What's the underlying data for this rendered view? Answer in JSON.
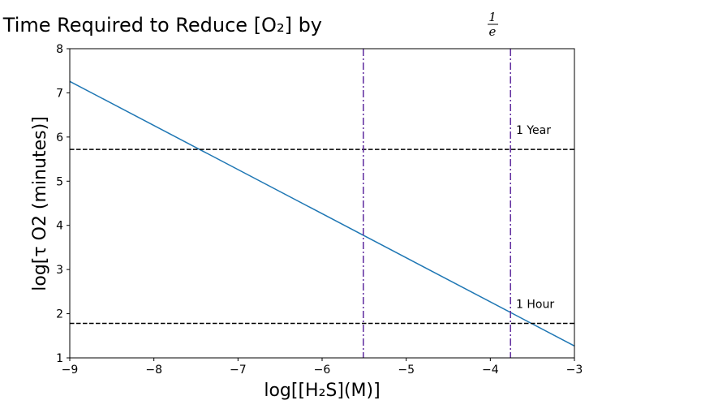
{
  "chart_data": {
    "type": "line",
    "title": "Time Required to Reduce [O₂] by",
    "title_fraction": {
      "numerator": "1",
      "denominator": "e"
    },
    "xlabel": "log[[H₂S](M)]",
    "ylabel": "log[τ O2 (minutes)]",
    "xlim": [
      -9,
      -3
    ],
    "ylim": [
      1,
      8
    ],
    "xticks": [
      -9,
      -8,
      -7,
      -6,
      -5,
      -4,
      -3
    ],
    "xtick_labels": [
      "−9",
      "−8",
      "−7",
      "−6",
      "−5",
      "−4",
      "−3"
    ],
    "yticks": [
      1,
      2,
      3,
      4,
      5,
      6,
      7,
      8
    ],
    "ytick_labels": [
      "1",
      "2",
      "3",
      "4",
      "5",
      "6",
      "7",
      "8"
    ],
    "grid": false,
    "series": [
      {
        "x": [
          -9,
          -3
        ],
        "y": [
          7.26,
          1.27
        ],
        "color": "#1f77b4"
      }
    ],
    "hlines": [
      {
        "y": 5.72,
        "label": "1 Year",
        "style": "dashed",
        "color": "#000000"
      },
      {
        "y": 1.78,
        "label": "1 Hour",
        "style": "dashed",
        "color": "#000000"
      }
    ],
    "vlines": [
      {
        "x": -5.51,
        "style": "dashdot",
        "color": "#5e2a9e"
      },
      {
        "x": -3.76,
        "style": "dashdot",
        "color": "#5e2a9e"
      }
    ]
  }
}
